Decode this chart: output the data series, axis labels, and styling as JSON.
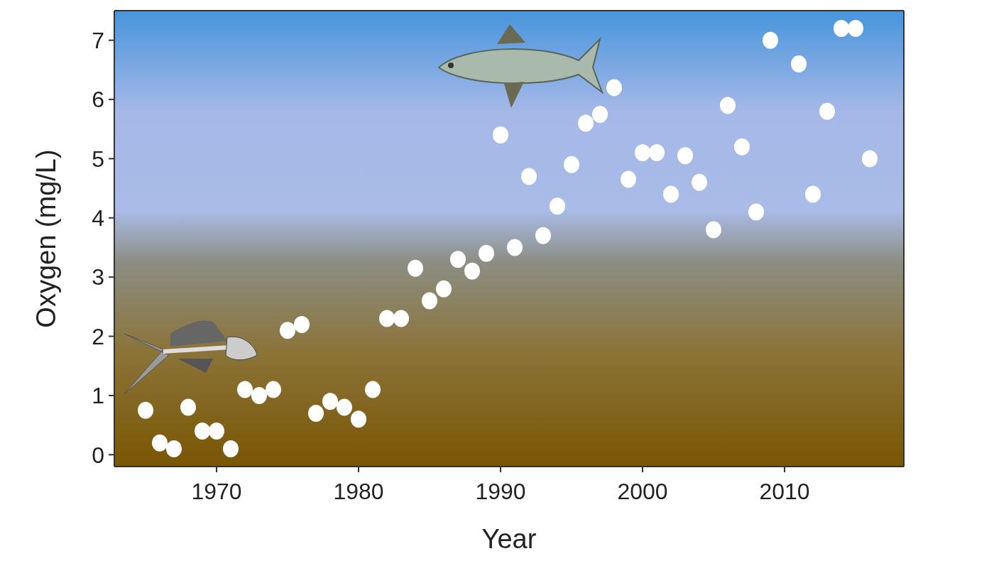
{
  "chart_data": {
    "type": "scatter",
    "xlabel": "Year",
    "ylabel": "Oxygen (mg/L)",
    "x": [
      1965,
      1966,
      1967,
      1968,
      1969,
      1970,
      1971,
      1972,
      1973,
      1974,
      1975,
      1976,
      1977,
      1978,
      1979,
      1980,
      1981,
      1982,
      1983,
      1984,
      1985,
      1986,
      1987,
      1988,
      1989,
      1990,
      1991,
      1992,
      1993,
      1994,
      1995,
      1996,
      1997,
      1998,
      1999,
      2000,
      2001,
      2002,
      2003,
      2004,
      2005,
      2006,
      2007,
      2008,
      2009,
      2011,
      2012,
      2013,
      2014,
      2015,
      2016
    ],
    "series": [
      {
        "color": "#ffffff",
        "values": [
          0.75,
          0.2,
          0.1,
          0.8,
          0.4,
          0.4,
          0.1,
          1.1,
          1.0,
          1.1,
          2.1,
          2.2,
          0.7,
          0.9,
          0.8,
          0.6,
          1.1,
          2.3,
          2.3,
          3.15,
          2.6,
          2.8,
          3.3,
          3.1,
          3.4,
          5.4,
          3.5,
          4.7,
          3.7,
          4.2,
          4.9,
          5.6,
          5.75,
          6.2,
          4.65,
          5.1,
          5.1,
          4.4,
          5.05,
          4.6,
          3.8,
          5.9,
          5.2,
          4.1,
          7.0,
          6.6,
          4.4,
          5.8,
          7.2,
          7.2,
          5.0
        ]
      }
    ],
    "xlim": [
      1962.8,
      2018.4
    ],
    "xticks": [
      1970,
      1980,
      1990,
      2000,
      2010
    ],
    "ylim": [
      -0.2,
      7.5
    ],
    "yticks": [
      0,
      1,
      2,
      3,
      4,
      5,
      6,
      7
    ],
    "marker": "circle",
    "grid": false
  }
}
